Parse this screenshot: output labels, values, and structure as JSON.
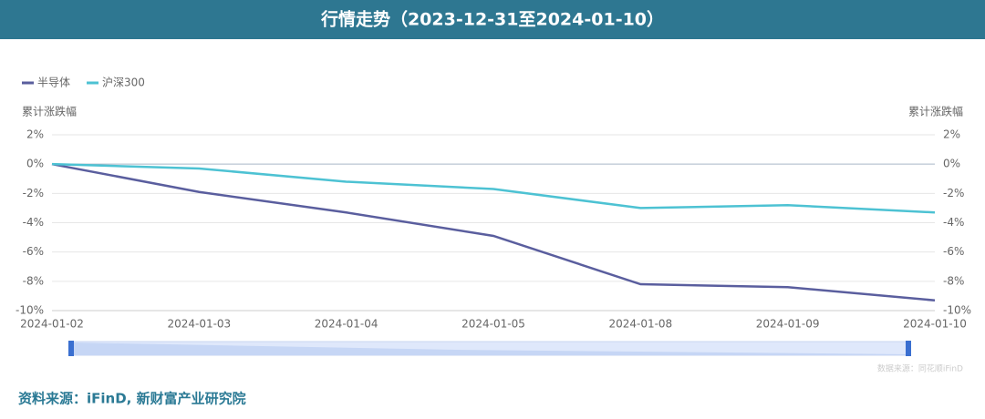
{
  "chart_data": {
    "type": "line",
    "title": "行情走势（2023-12-31至2024-01-10）",
    "y_axis_label": "累计涨跌幅",
    "y2_axis_label": "累计涨跌幅",
    "categories": [
      "2024-01-02",
      "2024-01-03",
      "2024-01-04",
      "2024-01-05",
      "2024-01-08",
      "2024-01-09",
      "2024-01-10"
    ],
    "series": [
      {
        "name": "半导体",
        "color": "#5a5e9e",
        "values": [
          0,
          -1.9,
          -3.3,
          -4.9,
          -8.2,
          -8.4,
          -9.3
        ]
      },
      {
        "name": "沪深300",
        "color": "#4dc2d3",
        "values": [
          0,
          -0.3,
          -1.2,
          -1.7,
          -3.0,
          -2.8,
          -3.3
        ]
      }
    ],
    "ylim": [
      -10,
      2
    ],
    "yticks": [
      {
        "value": -10,
        "label": "-10%"
      },
      {
        "value": -8,
        "label": "-8%"
      },
      {
        "value": -6,
        "label": "-6%"
      },
      {
        "value": -4,
        "label": "-4%"
      },
      {
        "value": -2,
        "label": "-2%"
      },
      {
        "value": 0,
        "label": "0%"
      },
      {
        "value": 2,
        "label": "2%"
      }
    ],
    "y2lim": [
      -10,
      2
    ],
    "y2ticks": [
      {
        "value": -10,
        "label": "-10%"
      },
      {
        "value": -8,
        "label": "-8%"
      },
      {
        "value": -6,
        "label": "-6%"
      },
      {
        "value": -4,
        "label": "-4%"
      },
      {
        "value": -2,
        "label": "-2%"
      },
      {
        "value": 0,
        "label": "0%"
      },
      {
        "value": 2,
        "label": "2%"
      }
    ],
    "grid": true,
    "legend": "top-left",
    "watermark": "数据来源：同花顺iFinD",
    "source": "资料来源：iFinD, 新财富产业研究院"
  }
}
